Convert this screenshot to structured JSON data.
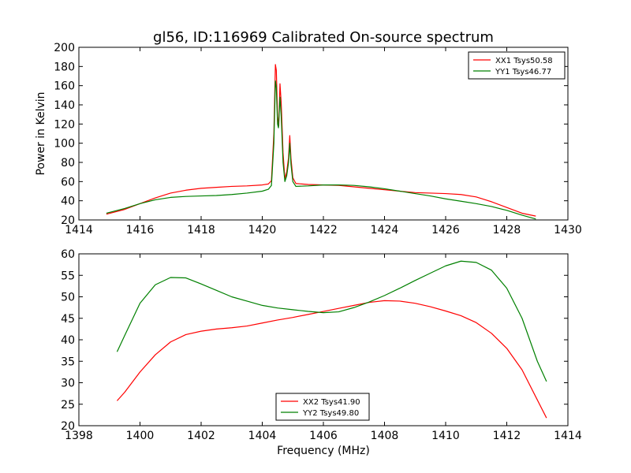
{
  "figure": {
    "title": "gl56, ID:116969 Calibrated On-source spectrum"
  },
  "chart_data": [
    {
      "type": "line",
      "title": "gl56, ID:116969 Calibrated On-source spectrum",
      "xlabel": "",
      "ylabel": "Power in Kelvin",
      "xlim": [
        1414,
        1430
      ],
      "ylim": [
        20,
        200
      ],
      "xticks": [
        1414,
        1416,
        1418,
        1420,
        1422,
        1424,
        1426,
        1428,
        1430
      ],
      "yticks": [
        20,
        40,
        60,
        80,
        100,
        120,
        140,
        160,
        180,
        200
      ],
      "grid": false,
      "legend": "top-right",
      "series": [
        {
          "name": "XX1 Tsys50.58",
          "color": "#ff0000",
          "points": [
            [
              1414.9,
              26
            ],
            [
              1415.5,
              31
            ],
            [
              1416,
              37
            ],
            [
              1416.5,
              43
            ],
            [
              1417,
              48
            ],
            [
              1417.5,
              51
            ],
            [
              1418,
              53
            ],
            [
              1418.5,
              54
            ],
            [
              1419,
              55
            ],
            [
              1419.5,
              55.5
            ],
            [
              1420,
              56.5
            ],
            [
              1420.2,
              57.5
            ],
            [
              1420.3,
              61
            ],
            [
              1420.38,
              110
            ],
            [
              1420.43,
              182
            ],
            [
              1420.46,
              176
            ],
            [
              1420.5,
              128
            ],
            [
              1420.54,
              118
            ],
            [
              1420.58,
              162
            ],
            [
              1420.62,
              142
            ],
            [
              1420.68,
              90
            ],
            [
              1420.74,
              63
            ],
            [
              1420.8,
              70
            ],
            [
              1420.86,
              85
            ],
            [
              1420.9,
              108
            ],
            [
              1420.94,
              84
            ],
            [
              1421,
              64
            ],
            [
              1421.1,
              58
            ],
            [
              1421.5,
              57
            ],
            [
              1422,
              56.5
            ],
            [
              1422.5,
              56
            ],
            [
              1423,
              54.5
            ],
            [
              1423.5,
              53
            ],
            [
              1424,
              51.5
            ],
            [
              1424.5,
              50
            ],
            [
              1425,
              48.5
            ],
            [
              1425.5,
              48
            ],
            [
              1426,
              47.5
            ],
            [
              1426.5,
              46.5
            ],
            [
              1427,
              44
            ],
            [
              1427.5,
              39
            ],
            [
              1428,
              33
            ],
            [
              1428.5,
              27
            ],
            [
              1428.95,
              24
            ]
          ]
        },
        {
          "name": "YY1 Tsys46.77",
          "color": "#008000",
          "points": [
            [
              1414.9,
              27
            ],
            [
              1415.5,
              32
            ],
            [
              1416,
              37
            ],
            [
              1416.5,
              41
            ],
            [
              1417,
              43.5
            ],
            [
              1417.5,
              44.5
            ],
            [
              1418,
              45
            ],
            [
              1418.5,
              45.5
            ],
            [
              1419,
              46.5
            ],
            [
              1419.5,
              48
            ],
            [
              1420,
              50
            ],
            [
              1420.2,
              52
            ],
            [
              1420.3,
              56
            ],
            [
              1420.38,
              100
            ],
            [
              1420.43,
              165
            ],
            [
              1420.46,
              158
            ],
            [
              1420.5,
              120
            ],
            [
              1420.53,
              116
            ],
            [
              1420.58,
              148
            ],
            [
              1420.62,
              128
            ],
            [
              1420.68,
              80
            ],
            [
              1420.74,
              60
            ],
            [
              1420.8,
              66
            ],
            [
              1420.86,
              80
            ],
            [
              1420.9,
              100
            ],
            [
              1420.94,
              78
            ],
            [
              1421,
              60
            ],
            [
              1421.1,
              55
            ],
            [
              1421.5,
              55.5
            ],
            [
              1422,
              56.5
            ],
            [
              1422.5,
              56.5
            ],
            [
              1423,
              56
            ],
            [
              1423.5,
              54.5
            ],
            [
              1424,
              52.5
            ],
            [
              1424.5,
              50
            ],
            [
              1425,
              47.5
            ],
            [
              1425.5,
              45
            ],
            [
              1426,
              42
            ],
            [
              1426.5,
              39.5
            ],
            [
              1427,
              37
            ],
            [
              1427.5,
              34
            ],
            [
              1428,
              30
            ],
            [
              1428.5,
              25
            ],
            [
              1428.95,
              21
            ]
          ]
        }
      ]
    },
    {
      "type": "line",
      "title": "",
      "xlabel": "Frequency (MHz)",
      "ylabel": "",
      "xlim": [
        1398,
        1414
      ],
      "ylim": [
        20,
        60
      ],
      "xticks": [
        1398,
        1400,
        1402,
        1404,
        1406,
        1408,
        1410,
        1412,
        1414
      ],
      "yticks": [
        20,
        25,
        30,
        35,
        40,
        45,
        50,
        55,
        60
      ],
      "grid": false,
      "legend": "bottom-center",
      "series": [
        {
          "name": "XX2 Tsys41.90",
          "color": "#ff0000",
          "points": [
            [
              1399.25,
              25.8
            ],
            [
              1399.5,
              27.8
            ],
            [
              1400,
              32.5
            ],
            [
              1400.5,
              36.5
            ],
            [
              1401,
              39.5
            ],
            [
              1401.5,
              41.2
            ],
            [
              1402,
              42
            ],
            [
              1402.5,
              42.5
            ],
            [
              1403,
              42.8
            ],
            [
              1403.5,
              43.2
            ],
            [
              1404,
              43.9
            ],
            [
              1404.5,
              44.6
            ],
            [
              1405,
              45.2
            ],
            [
              1405.5,
              45.9
            ],
            [
              1406,
              46.6
            ],
            [
              1406.5,
              47.3
            ],
            [
              1407,
              48
            ],
            [
              1407.5,
              48.7
            ],
            [
              1408,
              49.1
            ],
            [
              1408.5,
              49
            ],
            [
              1409,
              48.5
            ],
            [
              1409.5,
              47.7
            ],
            [
              1410,
              46.7
            ],
            [
              1410.5,
              45.6
            ],
            [
              1411,
              44
            ],
            [
              1411.5,
              41.5
            ],
            [
              1412,
              38
            ],
            [
              1412.5,
              33
            ],
            [
              1413,
              26
            ],
            [
              1413.3,
              21.8
            ]
          ]
        },
        {
          "name": "YY2 Tsys49.80",
          "color": "#008000",
          "points": [
            [
              1399.25,
              37.2
            ],
            [
              1399.5,
              41
            ],
            [
              1400,
              48.5
            ],
            [
              1400.5,
              52.8
            ],
            [
              1401,
              54.5
            ],
            [
              1401.5,
              54.4
            ],
            [
              1402,
              53
            ],
            [
              1402.5,
              51.5
            ],
            [
              1403,
              50
            ],
            [
              1403.5,
              49
            ],
            [
              1404,
              48
            ],
            [
              1404.5,
              47.4
            ],
            [
              1405,
              47
            ],
            [
              1405.5,
              46.6
            ],
            [
              1406,
              46.3
            ],
            [
              1406.5,
              46.5
            ],
            [
              1407,
              47.5
            ],
            [
              1407.5,
              48.8
            ],
            [
              1408,
              50.3
            ],
            [
              1408.5,
              52
            ],
            [
              1409,
              53.8
            ],
            [
              1409.5,
              55.5
            ],
            [
              1410,
              57.2
            ],
            [
              1410.5,
              58.3
            ],
            [
              1411,
              58
            ],
            [
              1411.5,
              56.2
            ],
            [
              1412,
              52
            ],
            [
              1412.5,
              45
            ],
            [
              1413,
              35
            ],
            [
              1413.3,
              30.3
            ]
          ]
        }
      ]
    }
  ]
}
